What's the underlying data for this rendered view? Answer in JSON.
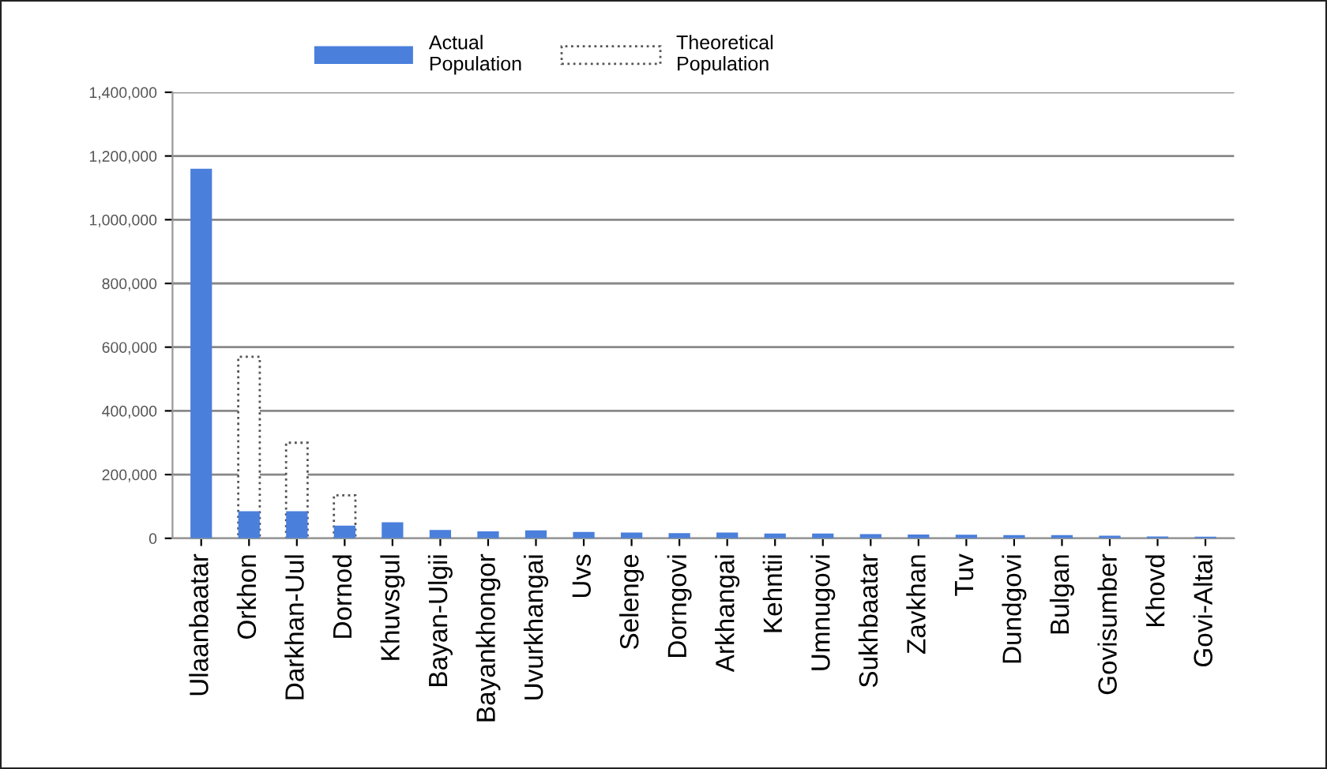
{
  "chart_data": {
    "type": "bar",
    "categories": [
      "Ulaanbaatar",
      "Orkhon",
      "Darkhan-Uul",
      "Dornod",
      "Khuvsgul",
      "Bayan-Ulgii",
      "Bayankhongor",
      "Uvurkhangai",
      "Uvs",
      "Selenge",
      "Dorngovi",
      "Arkhangai",
      "Kehntii",
      "Umnugovi",
      "Sukhbaatar",
      "Zavkhan",
      "Tuv",
      "Dundgovi",
      "Bulgan",
      "Govisumber",
      "Khovd",
      "Govi-Altai"
    ],
    "series": [
      {
        "name": "Theoretical Population",
        "color": "#ffffff",
        "line_style": "dotted",
        "values": [
          null,
          570000,
          300000,
          135000,
          null,
          null,
          null,
          null,
          null,
          null,
          null,
          null,
          null,
          null,
          null,
          null,
          null,
          null,
          null,
          null,
          null,
          null
        ]
      },
      {
        "name": "Actual Population",
        "color": "#4a7fdc",
        "values": [
          1160000,
          85000,
          85000,
          40000,
          50000,
          26000,
          22000,
          25000,
          20000,
          18000,
          16000,
          18000,
          15000,
          15000,
          13000,
          12000,
          11000,
          10000,
          10000,
          8000,
          6000,
          5000
        ]
      }
    ],
    "ylim": [
      0,
      1400000
    ],
    "yticks": [
      {
        "value": 0,
        "label": "0"
      },
      {
        "value": 200000,
        "label": "200,000"
      },
      {
        "value": 400000,
        "label": "400,000"
      },
      {
        "value": 600000,
        "label": "600,000"
      },
      {
        "value": 800000,
        "label": "800,000"
      },
      {
        "value": 1000000,
        "label": "1,000,000"
      },
      {
        "value": 1200000,
        "label": "1,200,000"
      },
      {
        "value": 1400000,
        "label": "1,400,000"
      }
    ],
    "grid": "y",
    "legend": "top"
  }
}
